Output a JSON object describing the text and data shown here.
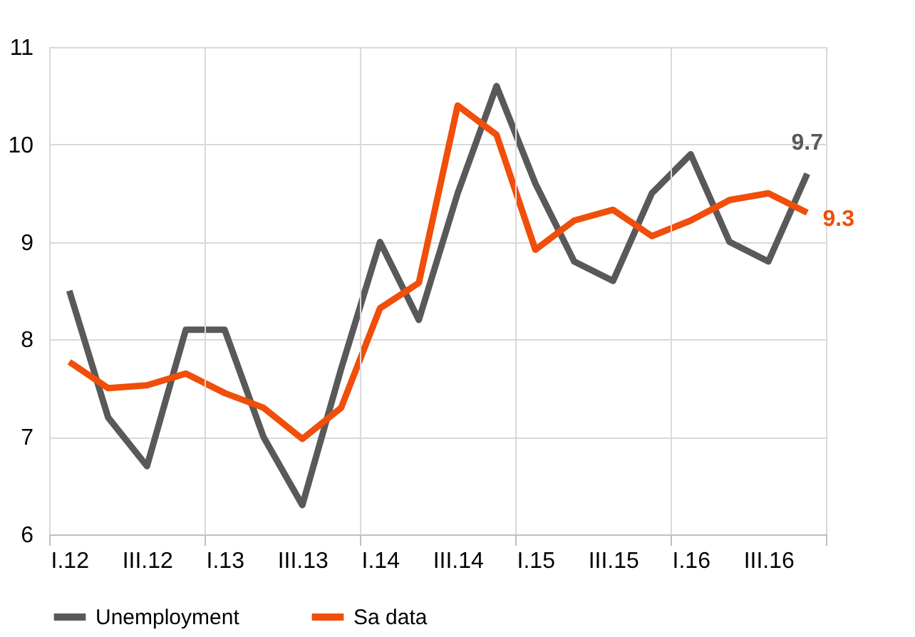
{
  "chart_data": {
    "type": "line",
    "categories": [
      "I.12",
      null,
      "III.12",
      null,
      "I.13",
      null,
      "III.13",
      null,
      "I.14",
      null,
      "III.14",
      null,
      "I.15",
      null,
      "III.15",
      null,
      "I.16",
      null,
      "III.16",
      null
    ],
    "series": [
      {
        "name": "Unemployment",
        "color": "#595959",
        "values": [
          8.5,
          7.2,
          6.7,
          8.1,
          8.1,
          7.0,
          6.3,
          7.7,
          9.0,
          8.2,
          9.5,
          10.6,
          9.6,
          8.8,
          8.6,
          9.5,
          9.9,
          9.0,
          8.8,
          9.7
        ],
        "value_labels": [
          null,
          null,
          null,
          null,
          null,
          null,
          null,
          null,
          null,
          null,
          null,
          null,
          null,
          null,
          null,
          null,
          null,
          null,
          null,
          "9.7"
        ]
      },
      {
        "name": "Sa data",
        "color": "#f04e0a",
        "values": [
          7.77,
          7.5,
          7.53,
          7.65,
          7.45,
          7.3,
          6.98,
          7.3,
          8.32,
          8.58,
          10.4,
          10.1,
          8.92,
          9.22,
          9.33,
          9.06,
          9.22,
          9.43,
          9.5,
          9.3
        ],
        "value_labels": [
          null,
          null,
          null,
          null,
          null,
          null,
          null,
          null,
          null,
          null,
          null,
          null,
          null,
          null,
          null,
          null,
          null,
          null,
          null,
          "9.3"
        ]
      }
    ],
    "ylim": [
      6,
      11
    ],
    "yticks": [
      6,
      7,
      8,
      9,
      10,
      11
    ],
    "grid": true,
    "legend": "bottom",
    "line_style": "solid",
    "marker": "none"
  }
}
